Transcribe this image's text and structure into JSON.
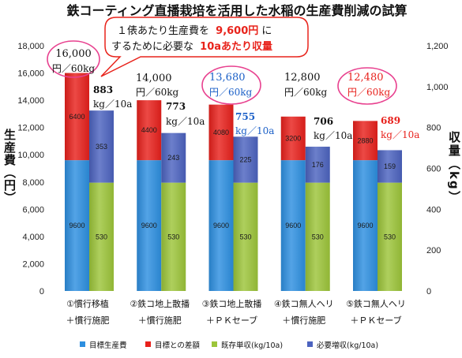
{
  "callout": {
    "line1": "１俵あたり生産費を",
    "line1_highlight": "9,600円",
    "line1_end": "に",
    "line2": "するために必要な",
    "line2_highlight": "10aあたり収量",
    "border_color": "#e8231b",
    "highlight_color": "#e8231b"
  },
  "chart_data": {
    "type": "bar",
    "stacked": true,
    "title": "鉄コーティング直播栽培を活用した水稲の生産費削減の試算",
    "categories": [
      [
        "①慣行移植",
        "＋慣行施肥"
      ],
      [
        "②鉄コ地上散播",
        "＋慣行施肥"
      ],
      [
        "③鉄コ地上散播",
        "＋ＰＫセーブ"
      ],
      [
        "④鉄コ無人ヘリ",
        "＋慣行施肥"
      ],
      [
        "⑤鉄コ無人ヘリ",
        "＋ＰＫセーブ"
      ]
    ],
    "series": [
      {
        "name": "目標生産費",
        "axis": "left",
        "color": "#2d8fe0",
        "values": [
          9600,
          9600,
          9600,
          9600,
          9600
        ]
      },
      {
        "name": "目標との差額",
        "axis": "left",
        "color": "#e8211c",
        "values": [
          6400,
          4400,
          4080,
          3200,
          2880
        ]
      },
      {
        "name": "既存単収(kg/10a)",
        "axis": "right",
        "color": "#9cc53a",
        "values": [
          530,
          530,
          530,
          530,
          530
        ]
      },
      {
        "name": "必要増収(kg/10a)",
        "axis": "right",
        "color": "#4c63bf",
        "values": [
          353,
          243,
          225,
          176,
          159
        ]
      }
    ],
    "y_left": {
      "label": "生産費（円）",
      "range": [
        0,
        18000
      ],
      "ticks": [
        "0",
        "2,000",
        "4,000",
        "6,000",
        "8,000",
        "10,000",
        "12,000",
        "14,000",
        "16,000",
        "18,000"
      ]
    },
    "y_right": {
      "label": "収量（kg）",
      "range": [
        0,
        1200
      ],
      "ticks": [
        "0",
        "200",
        "400",
        "600",
        "800",
        "1,000",
        "1,200"
      ]
    },
    "grid": false,
    "legend_position": "bottom",
    "circle_color": "#e8418f",
    "annotations": [
      {
        "cost": "16,000",
        "cost_unit": "円／60kg",
        "yield": "883",
        "yield_unit": "kg／10a",
        "color": "#111111",
        "circled": true
      },
      {
        "cost": "14,000",
        "cost_unit": "円／60kg",
        "yield": "773",
        "yield_unit": "kg／10a",
        "color": "#111111",
        "circled": false
      },
      {
        "cost": "13,680",
        "cost_unit": "円／60kg",
        "yield": "755",
        "yield_unit": "kg／10a",
        "color": "#1a5fc7",
        "circled": true
      },
      {
        "cost": "12,800",
        "cost_unit": "円／60kg",
        "yield": "706",
        "yield_unit": "kg／10a",
        "color": "#111111",
        "circled": false
      },
      {
        "cost": "12,480",
        "cost_unit": "円／60kg",
        "yield": "689",
        "yield_unit": "kg／10a",
        "color": "#e8211c",
        "circled": true
      }
    ]
  }
}
